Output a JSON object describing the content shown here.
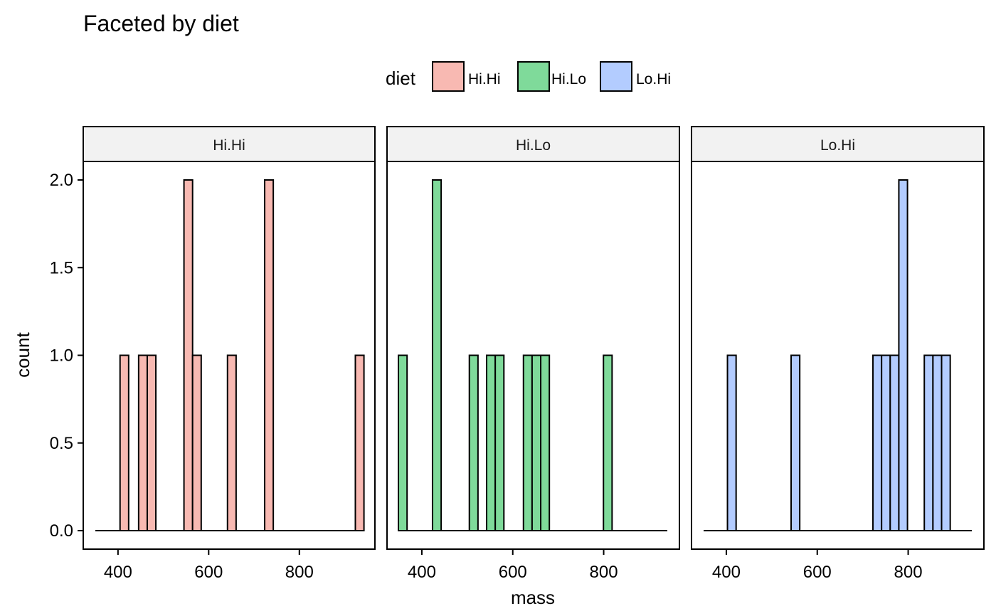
{
  "chart_data": {
    "type": "bar",
    "subtype": "faceted-histogram",
    "title": "Faceted by diet",
    "xlabel": "mass",
    "ylabel": "count",
    "xlim": [
      350,
      940
    ],
    "ylim": [
      0,
      2
    ],
    "x_ticks": [
      400,
      600,
      800
    ],
    "y_ticks": [
      0.0,
      0.5,
      1.0,
      1.5,
      2.0
    ],
    "y_tick_labels": [
      "0.0",
      "0.5",
      "1.0",
      "1.5",
      "2.0"
    ],
    "bin_width": 19,
    "grid": false,
    "legend": {
      "title": "diet",
      "position": "top",
      "entries": [
        "Hi.Hi",
        "Hi.Lo",
        "Lo.Hi"
      ]
    },
    "colors": {
      "Hi.Hi": "#F8B9B2",
      "Hi.Lo": "#7FDA9A",
      "Lo.Hi": "#B3CCFF",
      "outline": "#000000",
      "strip_background": "#F2F2F2"
    },
    "facets": [
      {
        "name": "Hi.Hi",
        "bins": [
          {
            "x": 414,
            "count": 1
          },
          {
            "x": 455,
            "count": 1
          },
          {
            "x": 474,
            "count": 1
          },
          {
            "x": 555,
            "count": 2
          },
          {
            "x": 574,
            "count": 1
          },
          {
            "x": 651,
            "count": 1
          },
          {
            "x": 733,
            "count": 2
          },
          {
            "x": 933,
            "count": 1
          }
        ]
      },
      {
        "name": "Hi.Lo",
        "bins": [
          {
            "x": 358,
            "count": 1
          },
          {
            "x": 433,
            "count": 2
          },
          {
            "x": 514,
            "count": 1
          },
          {
            "x": 552,
            "count": 1
          },
          {
            "x": 571,
            "count": 1
          },
          {
            "x": 633,
            "count": 1
          },
          {
            "x": 652,
            "count": 1
          },
          {
            "x": 671,
            "count": 1
          },
          {
            "x": 809,
            "count": 1
          }
        ]
      },
      {
        "name": "Lo.Hi",
        "bins": [
          {
            "x": 412,
            "count": 1
          },
          {
            "x": 552,
            "count": 1
          },
          {
            "x": 732,
            "count": 1
          },
          {
            "x": 751,
            "count": 1
          },
          {
            "x": 770,
            "count": 1
          },
          {
            "x": 789,
            "count": 2
          },
          {
            "x": 845,
            "count": 1
          },
          {
            "x": 864,
            "count": 1
          },
          {
            "x": 883,
            "count": 1
          }
        ]
      }
    ]
  }
}
